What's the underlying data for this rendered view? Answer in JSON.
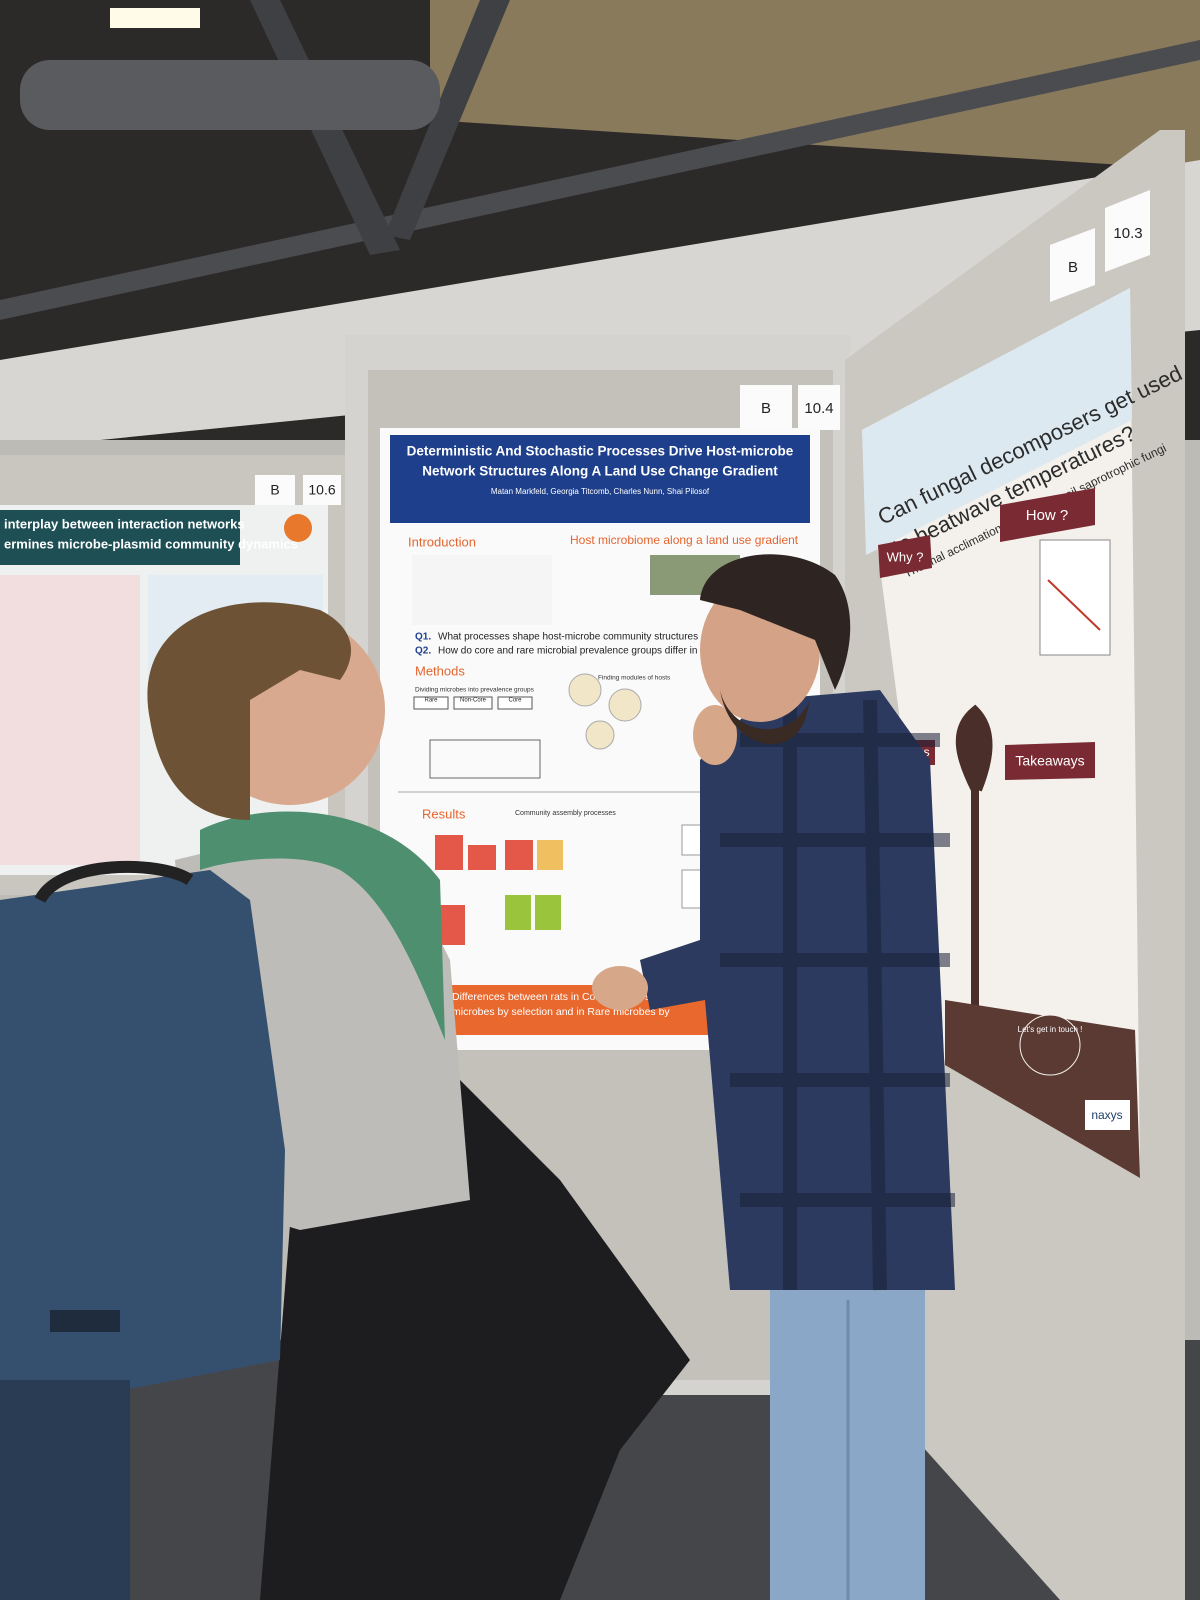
{
  "boards": {
    "left": {
      "letter": "B",
      "number": "10.6"
    },
    "center": {
      "letter": "B",
      "number": "10.4"
    },
    "right": {
      "letter": "B",
      "number": "10.3"
    }
  },
  "posters": {
    "left": {
      "title_lines": [
        "interplay between interaction networks",
        "ermines microbe-plasmid community dynamics"
      ]
    },
    "center": {
      "title_lines": [
        "Deterministic And Stochastic Processes Drive Host-microbe",
        "Network Structures Along A Land Use Change Gradient"
      ],
      "authors": "Matan Markfeld, Georgia Titcomb, Charles Nunn, Shai Pilosof",
      "sections": [
        "Introduction",
        "Host microbiome along a land use gradient",
        "Methods",
        "Results"
      ],
      "questions": [
        {
          "label": "Q1.",
          "text": "What processes shape host-microbe community structures along a la"
        },
        {
          "label": "Q2.",
          "text": "How do core and rare microbial prevalence groups differ in these pro"
        }
      ],
      "subheads": [
        "Dividing microbes into prevalence groups",
        "Finding modules of hosts",
        "Community assembly processes"
      ],
      "groups": [
        "Rare",
        "Non-Core",
        "Core"
      ],
      "conclusion_lines": [
        "Differences between rats in Core microbes are driven by drift, whereas",
        "microbes by selection and in Rare microbes by"
      ]
    },
    "right": {
      "title_lines": [
        "Can fungal decomposers get used",
        "to heatwave temperatures?"
      ],
      "subtitle": "Thermal acclimation of common soil saprotrophic fungi",
      "sections": [
        "Why ?",
        "How ?",
        "Findings",
        "Takeaways"
      ],
      "contact": "Let's get in touch !",
      "logo": "naxys"
    }
  }
}
